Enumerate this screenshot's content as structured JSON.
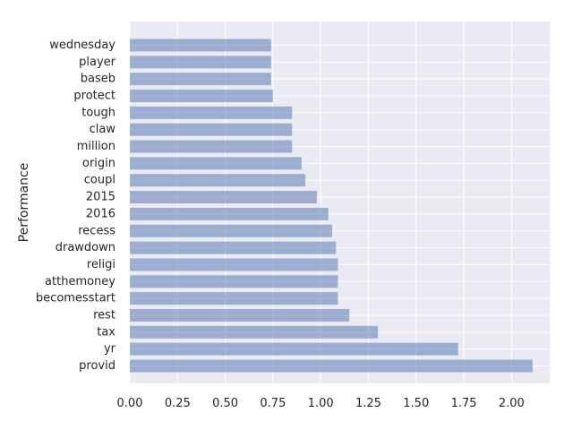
{
  "chart_data": {
    "type": "bar",
    "orientation": "horizontal",
    "ylabel": "Performance",
    "xlabel": "",
    "title": "",
    "categories": [
      "provid",
      "yr",
      "tax",
      "rest",
      "becomesstart",
      "atthemoney",
      "religi",
      "drawdown",
      "recess",
      "2016",
      "2015",
      "coupl",
      "origin",
      "million",
      "claw",
      "tough",
      "protect",
      "baseb",
      "player",
      "wednesday"
    ],
    "values": [
      2.11,
      1.72,
      1.3,
      1.15,
      1.09,
      1.09,
      1.09,
      1.08,
      1.06,
      1.04,
      0.98,
      0.92,
      0.9,
      0.85,
      0.85,
      0.85,
      0.75,
      0.74,
      0.74,
      0.74
    ],
    "xlim": [
      0,
      2.2
    ],
    "xticks": [
      "0.00",
      "0.25",
      "0.50",
      "0.75",
      "1.00",
      "1.25",
      "1.50",
      "1.75",
      "2.00"
    ],
    "grid": true,
    "colors": {
      "bar": "#4c72b0",
      "background": "#eaeaf2",
      "grid": "#ffffff"
    }
  }
}
